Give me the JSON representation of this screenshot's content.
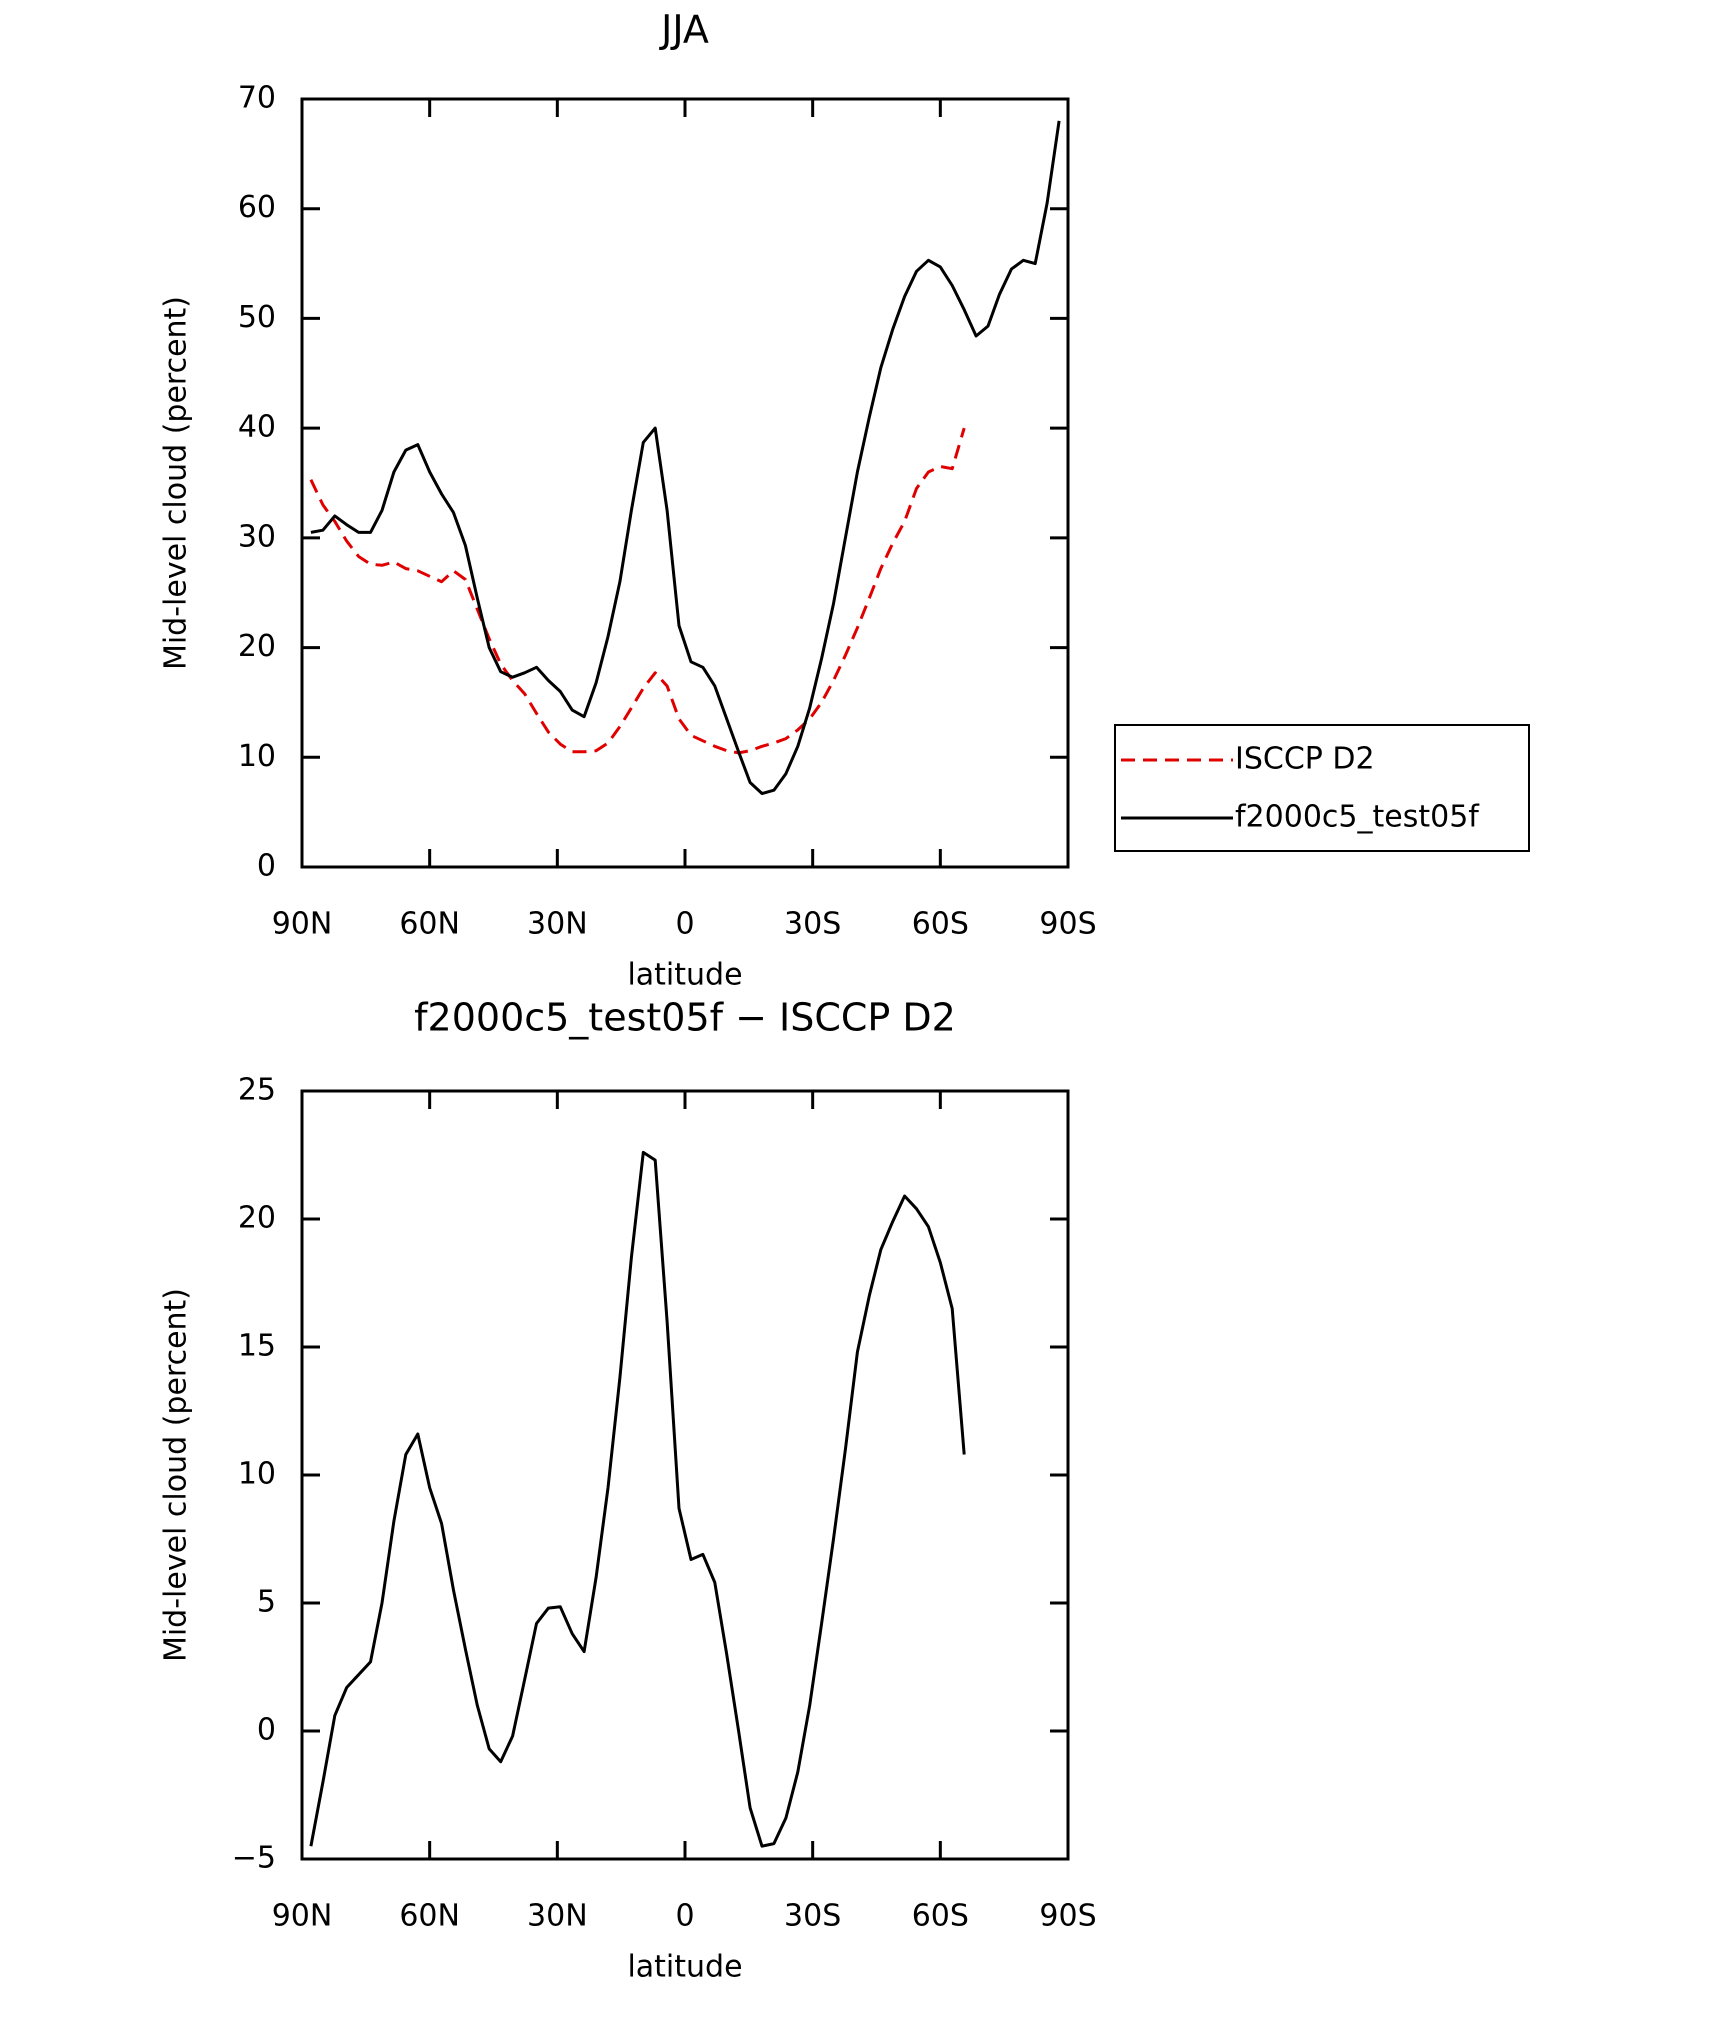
{
  "chart_data": [
    {
      "type": "line",
      "title": "JJA",
      "x_label": "latitude",
      "y_label": "Mid-level cloud (percent)",
      "x": [
        87.9,
        85.1,
        82.3,
        79.5,
        76.7,
        73.9,
        71.2,
        68.4,
        65.6,
        62.8,
        60.0,
        57.2,
        54.4,
        51.6,
        48.8,
        46.0,
        43.3,
        40.5,
        37.7,
        34.9,
        32.1,
        29.3,
        26.5,
        23.7,
        20.9,
        18.1,
        15.3,
        12.6,
        9.8,
        7.0,
        4.2,
        1.4,
        -1.4,
        -4.2,
        -7.0,
        -9.8,
        -12.6,
        -15.3,
        -18.1,
        -20.9,
        -23.7,
        -26.5,
        -29.3,
        -32.1,
        -34.9,
        -37.7,
        -40.5,
        -43.3,
        -46.0,
        -48.8,
        -51.6,
        -54.4,
        -57.2,
        -60.0,
        -62.8,
        -65.6,
        -68.4,
        -71.2,
        -73.9,
        -76.7,
        -79.5,
        -82.3,
        -85.1,
        -87.9
      ],
      "series": [
        {
          "name": "ISCCP D2",
          "color": "#e00000",
          "dashed": true,
          "values": [
            35.3,
            33,
            31.5,
            29.7,
            28.3,
            27.6,
            27.5,
            27.8,
            27.2,
            27,
            26.5,
            26,
            27,
            26.2,
            23.5,
            20.8,
            18.5,
            17,
            15.8,
            14,
            12.3,
            11.2,
            10.5,
            10.5,
            10.6,
            11.3,
            12.8,
            14.5,
            16.3,
            17.7,
            16.5,
            13.5,
            12,
            11.5,
            11,
            10.6,
            10.4,
            10.6,
            11,
            11.3,
            11.7,
            12.5,
            13.5,
            15,
            17,
            19.3,
            21.8,
            24.5,
            27.2,
            29.5,
            31.5,
            34.5,
            36,
            36.5,
            36.3,
            40,
            null,
            null,
            null,
            null,
            null,
            null,
            null,
            null
          ]
        },
        {
          "name": "f2000c5_test05f",
          "color": "#000000",
          "dashed": false,
          "values": [
            30.5,
            30.7,
            32,
            31.2,
            30.5,
            30.5,
            32.5,
            36,
            38,
            38.5,
            36,
            34,
            32.3,
            29.3,
            24.5,
            20,
            17.8,
            17.3,
            17.7,
            18.2,
            17,
            16,
            14.3,
            13.7,
            16.8,
            21,
            26,
            32.5,
            38.7,
            40,
            32.5,
            22,
            18.7,
            18.2,
            16.5,
            13.5,
            10.5,
            7.7,
            6.7,
            7,
            8.5,
            11,
            14.5,
            19,
            24,
            30,
            36,
            41,
            45.5,
            49,
            52,
            54.3,
            55.3,
            54.7,
            53,
            50.8,
            48.4,
            49.3,
            52.2,
            54.5,
            55.3,
            55,
            60.5,
            68
          ]
        }
      ],
      "xlim": [
        90,
        -90
      ],
      "xticks": [
        {
          "value": 90,
          "label": "90N"
        },
        {
          "value": 60,
          "label": "60N"
        },
        {
          "value": 30,
          "label": "30N"
        },
        0,
        {
          "value": -30,
          "label": "30S"
        },
        {
          "value": -60,
          "label": "60S"
        },
        {
          "value": -90,
          "label": "90S"
        }
      ],
      "ylim": [
        0,
        70
      ],
      "yticks": [
        0,
        10,
        20,
        30,
        40,
        50,
        60,
        70
      ],
      "legend": "right"
    },
    {
      "type": "line",
      "title": "f2000c5_test05f − ISCCP D2",
      "x_label": "latitude",
      "y_label": "Mid-level cloud (percent)",
      "x": [
        87.9,
        85.1,
        82.3,
        79.5,
        76.7,
        73.9,
        71.2,
        68.4,
        65.6,
        62.8,
        60.0,
        57.2,
        54.4,
        51.6,
        48.8,
        46.0,
        43.3,
        40.5,
        37.7,
        34.9,
        32.1,
        29.3,
        26.5,
        23.7,
        20.9,
        18.1,
        15.3,
        12.6,
        9.8,
        7.0,
        4.2,
        1.4,
        -1.4,
        -4.2,
        -7.0,
        -9.8,
        -12.6,
        -15.3,
        -18.1,
        -20.9,
        -23.7,
        -26.5,
        -29.3,
        -32.1,
        -34.9,
        -37.7,
        -40.5,
        -43.3,
        -46.0,
        -48.8,
        -51.6,
        -54.4,
        -57.2,
        -60.0,
        -62.8,
        -65.6
      ],
      "series": [
        {
          "color": "#000000",
          "dashed": false,
          "values": [
            -4.5,
            -2,
            0.6,
            1.7,
            2.2,
            2.7,
            5,
            8.2,
            10.8,
            11.6,
            9.5,
            8.1,
            5.5,
            3.2,
            1,
            -0.7,
            -1.2,
            -0.2,
            2,
            4.2,
            4.8,
            4.85,
            3.8,
            3.1,
            6,
            9.5,
            13.8,
            18.5,
            22.6,
            22.3,
            16,
            8.7,
            6.7,
            6.9,
            5.8,
            3,
            0,
            -3,
            -4.5,
            -4.4,
            -3.4,
            -1.6,
            1,
            4.2,
            7.5,
            11,
            14.8,
            17,
            18.8,
            19.9,
            20.9,
            20.4,
            19.7,
            18.3,
            16.5,
            10.8
          ]
        }
      ],
      "xlim": [
        90,
        -90
      ],
      "xticks": [
        {
          "value": 90,
          "label": "90N"
        },
        {
          "value": 60,
          "label": "60N"
        },
        {
          "value": 30,
          "label": "30N"
        },
        0,
        {
          "value": -30,
          "label": "30S"
        },
        {
          "value": -60,
          "label": "60S"
        },
        {
          "value": -90,
          "label": "90S"
        }
      ],
      "ylim": [
        -5,
        25
      ],
      "yticks": [
        {
          "value": -5,
          "label": "−5"
        },
        0,
        5,
        10,
        15,
        20,
        25
      ]
    }
  ]
}
